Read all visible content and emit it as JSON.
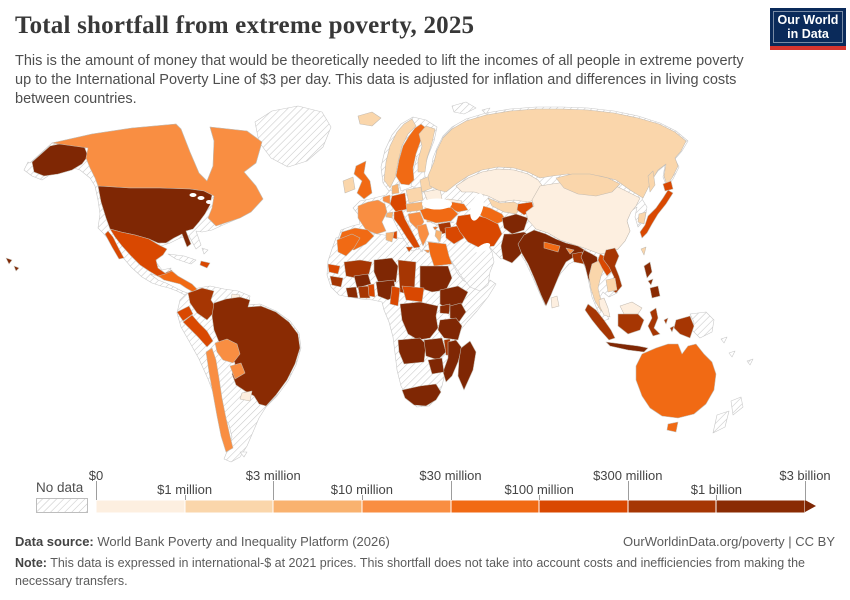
{
  "header": {
    "title": "Total shortfall from extreme poverty, 2025",
    "subtitle": "This is the amount of money that would be theoretically needed to lift the incomes of all people in extreme poverty up to the International Poverty Line of $3 per day. This data is adjusted for inflation and differences in living costs between countries.",
    "logo": {
      "line1": "Our World",
      "line2": "in Data",
      "bg": "#0A2A5A",
      "accent": "#D7352E"
    }
  },
  "chart_data": {
    "type": "heatmap",
    "title": "Total shortfall from extreme poverty, 2025",
    "unit": "international-$ at 2021 prices",
    "legend_position": "bottom",
    "no_data_label": "No data",
    "legend_ticks": [
      "$0",
      "$1 million",
      "$3 million",
      "$10 million",
      "$30 million",
      "$100 million",
      "$300 million",
      "$1 billion",
      "$3 billion"
    ],
    "bin_colors": [
      "#FDEFE0",
      "#FAD6AB",
      "#F9B26F",
      "#F98E42",
      "#F16A14",
      "#D94801",
      "#A63603",
      "#8A2B03",
      "#7F2704"
    ],
    "countries": {
      "north-america-base": "nodata",
      "south-america-base": "nodata",
      "africa-base": "nodata",
      "eurasia-base": "nodata",
      "scandinavia-base": "nodata",
      "greenland": "nodata",
      "svalbard": "nodata",
      "svalbard-2": "nodata",
      "cuba": "nodata",
      "bahamas": "nodata",
      "falklands": "nodata",
      "png": "nodata",
      "new-zealand-north": "nodata",
      "new-zealand-south": "nodata",
      "pacific-island-1": "nodata",
      "pacific-island-2": "nodata",
      "pacific-island-3": "nodata",
      "alaska": 8,
      "usa": 8,
      "hawaii": 8,
      "canada": 3,
      "mexico": 5,
      "baja": 5,
      "central-america": 4,
      "panama": 3,
      "hispaniola": 5,
      "colombia": 6,
      "guyana": 0,
      "ecuador": 5,
      "peru": 5,
      "brazil": 7,
      "bolivia": 3,
      "paraguay": 3,
      "uruguay": 0,
      "chile": 3,
      "iceland": 1,
      "uk": 4,
      "ireland": 1,
      "norway": 1,
      "sweden": 4,
      "finland": 1,
      "denmark": 2,
      "baltics": 1,
      "belarus": 0,
      "poland": 1,
      "germany": 5,
      "benelux": 3,
      "france": 3,
      "spain": 4,
      "italy": 5,
      "switzerland": 2,
      "austria-czech": 2,
      "balkans": 3,
      "romania": 2,
      "bulgaria": 2,
      "greece": 3,
      "ukraine": 0,
      "russia": 1,
      "kazakhstan": 0,
      "uzbekistan": 1,
      "turkmenistan": 4,
      "kyrgyz-tajik": 5,
      "caucasus": 4,
      "turkey": 4,
      "cyprus": 4,
      "syria": 6,
      "iraq": 5,
      "iran": 5,
      "israel-jordan": 2,
      "afghanistan": 8,
      "pakistan": 8,
      "india": 8,
      "nepal": 4,
      "bhutan": 3,
      "bangladesh": 6,
      "sri-lanka": 0,
      "china": 0,
      "mongolia": 1,
      "south-korea": 1,
      "taiwan": 1,
      "japan": 5,
      "morocco": 4,
      "tunisia": 2,
      "egypt": 4,
      "senegal": 5,
      "guinea": 6,
      "mali": 6,
      "burkina-faso": 8,
      "niger": 8,
      "chad": 6,
      "sudan": 8,
      "nigeria": 8,
      "togo-benin": 5,
      "ghana": 6,
      "ivory-coast": 7,
      "cameroon": 5,
      "central-african-republic": 5,
      "ethiopia": 8,
      "uganda": 7,
      "kenya": 8,
      "drc": 8,
      "tanzania": 8,
      "angola": 8,
      "zambia": 8,
      "malawi": 6,
      "mozambique": 8,
      "zimbabwe": 8,
      "south-africa": 8,
      "madagascar": 8,
      "myanmar": 8,
      "thailand": 1,
      "laos": 5,
      "vietnam": 6,
      "cambodia": 1,
      "malay-peninsula": 0,
      "sumatra": 6,
      "java": 8,
      "borneo-malaysia": 0,
      "kalimantan": 6,
      "sulawesi": 6,
      "moluccas": 6,
      "indonesian-papua": 6,
      "philippines": 7,
      "australia": 4,
      "tasmania": 4
    }
  },
  "footer": {
    "source_label": "Data source:",
    "source_text": " World Bank Poverty and Inequality Platform (2026)",
    "url": "OurWorldinData.org/poverty",
    "separator": " | ",
    "license": "CC BY",
    "note_label": "Note:",
    "note_text": " This data is expressed in international-$ at 2021 prices. This shortfall does not take into account costs and inefficiencies from making the necessary transfers."
  }
}
